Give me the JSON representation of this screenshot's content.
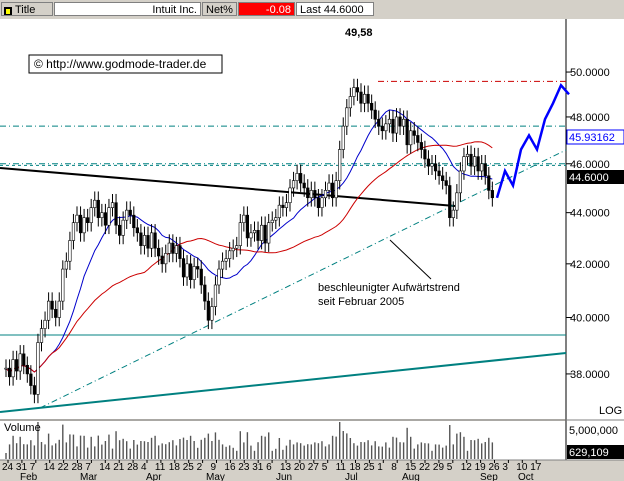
{
  "header": {
    "title_label": "Title",
    "instrument": "Intuit Inc.",
    "net_label": "Net%",
    "net_value": "-0.08",
    "last_label": "Last",
    "last_value": "44.6000",
    "net_color": "#ff0000"
  },
  "watermark": "© http://www.godmode-trader.de",
  "annotation": [
    "beschleunigter Aufwärtstrend",
    "seit Februar 2005"
  ],
  "peak_label": "49,58",
  "volume_label": "Volume",
  "log_label": "LOG",
  "chart_data": {
    "type": "candlestick",
    "title": "Intuit Inc.",
    "scale": "log",
    "ylim": [
      37.4,
      50.8
    ],
    "y_ticks": [
      38.0,
      40.0,
      42.0,
      44.0,
      46.0,
      48.0,
      50.0
    ],
    "y_tick_labels": [
      "38.0000",
      "40.0000",
      "42.0000",
      "44.0000",
      "46.0000",
      "48.0000",
      "50.0000"
    ],
    "x_tick_labels": [
      "24",
      "31",
      "7",
      "14",
      "22",
      "28",
      "7",
      "14",
      "21",
      "28",
      "4",
      "11",
      "18",
      "25",
      "2",
      "9",
      "16",
      "23",
      "31",
      "6",
      "13",
      "20",
      "27",
      "5",
      "11",
      "18",
      "25",
      "1",
      "8",
      "15",
      "22",
      "29",
      "5",
      "12",
      "19",
      "26",
      "3",
      "10",
      "17"
    ],
    "month_labels": [
      "Feb",
      "Mar",
      "Apr",
      "May",
      "Jun",
      "Jul",
      "Aug",
      "Sep",
      "Oct"
    ],
    "last_price": 44.6,
    "price_marker": 45.93162,
    "price_marker_label": "45.93162",
    "peak": 49.58,
    "volume_ticks": [
      "5,000,000"
    ],
    "last_volume_label": "629,109",
    "close": [
      38.2,
      37.9,
      38.5,
      38.1,
      38.7,
      38.3,
      38.0,
      37.6,
      37.3,
      39.1,
      39.6,
      39.9,
      40.6,
      40.3,
      40.0,
      40.6,
      41.8,
      42.1,
      42.9,
      43.6,
      43.9,
      43.2,
      43.8,
      43.6,
      44.2,
      44.5,
      43.8,
      44.0,
      43.5,
      44.2,
      44.4,
      43.5,
      43.1,
      43.7,
      44.1,
      43.9,
      43.4,
      43.2,
      42.7,
      43.1,
      42.6,
      43.2,
      42.6,
      42.3,
      42.0,
      42.4,
      42.8,
      42.4,
      42.7,
      42.2,
      41.5,
      42.0,
      41.4,
      41.9,
      41.8,
      41.2,
      40.6,
      39.9,
      40.4,
      41.2,
      41.8,
      42.1,
      42.2,
      42.5,
      42.6,
      42.7,
      43.6,
      43.9,
      43.0,
      43.2,
      43.3,
      42.9,
      43.5,
      42.8,
      43.6,
      43.7,
      43.8,
      44.3,
      44.2,
      44.4,
      45.0,
      45.3,
      45.6,
      45.2,
      45.0,
      44.6,
      44.9,
      44.6,
      44.2,
      44.6,
      44.9,
      45.2,
      44.6,
      45.3,
      46.6,
      47.6,
      48.4,
      48.9,
      49.3,
      49.1,
      48.6,
      49.0,
      48.6,
      48.3,
      47.9,
      47.6,
      47.4,
      47.7,
      47.9,
      47.3,
      48.0,
      47.6,
      47.9,
      46.8,
      47.4,
      47.2,
      46.9,
      46.6,
      46.2,
      45.9,
      46.0,
      45.7,
      45.5,
      45.3,
      45.1,
      43.8,
      44.1,
      44.8,
      45.7,
      46.3,
      46.4,
      45.9,
      46.3,
      45.7,
      46.0,
      45.5,
      44.9,
      44.6
    ],
    "forecast": [
      44.6,
      45.7,
      45.1,
      46.6,
      47.2,
      46.6,
      47.9,
      48.6,
      49.4,
      49.0
    ]
  }
}
